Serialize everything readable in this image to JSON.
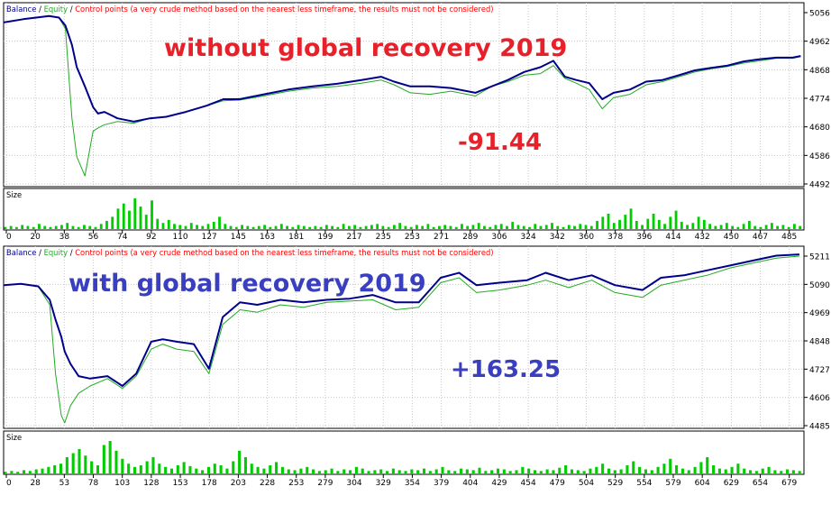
{
  "colors": {
    "balance": "#00008b",
    "equity": "#22aa22",
    "control": "#ff0000",
    "size_bars": "#00cc00",
    "grid": "#c8c8c8",
    "frame": "#000000",
    "text": "#000000",
    "annot_red": "#e8202a",
    "annot_blue": "#3a3fc0"
  },
  "panels": [
    {
      "legend": {
        "balance": "Balance",
        "sep1": "/",
        "equity": "Equity",
        "sep2": "/",
        "control": "Control points (a very crude method based on the nearest less timeframe, the results must not be considered)"
      },
      "y_ticks": [
        "5056",
        "4962",
        "4868",
        "4774",
        "4680",
        "4586",
        "4492"
      ],
      "size_label": "Size",
      "x_ticks": [
        "0",
        "20",
        "38",
        "56",
        "74",
        "92",
        "110",
        "127",
        "145",
        "163",
        "181",
        "199",
        "217",
        "235",
        "253",
        "271",
        "289",
        "306",
        "324",
        "342",
        "360",
        "378",
        "396",
        "414",
        "432",
        "450",
        "467",
        "485"
      ],
      "annotations": [
        {
          "text": "without global recovery 2019"
        },
        {
          "text": "-91.44"
        }
      ]
    },
    {
      "legend": {
        "balance": "Balance",
        "sep1": "/",
        "equity": "Equity",
        "sep2": "/",
        "control": "Control points (a very crude method based on the nearest less timeframe, the results must not be considered)"
      },
      "y_ticks": [
        "5211",
        "5090",
        "4969",
        "4848",
        "4727",
        "4606",
        "4485"
      ],
      "size_label": "Size",
      "x_ticks": [
        "0",
        "28",
        "53",
        "78",
        "103",
        "128",
        "153",
        "178",
        "203",
        "228",
        "253",
        "279",
        "304",
        "329",
        "354",
        "379",
        "404",
        "429",
        "454",
        "479",
        "504",
        "529",
        "554",
        "579",
        "604",
        "629",
        "654",
        "679"
      ],
      "annotations": [
        {
          "text": "with global recovery 2019"
        },
        {
          "text": "+163.25"
        }
      ]
    }
  ],
  "chart_data": [
    {
      "type": "line",
      "ylim": [
        4492,
        5056
      ],
      "x": [
        0,
        12,
        28,
        34,
        38,
        42,
        45,
        50,
        55,
        58,
        62,
        70,
        80,
        90,
        100,
        112,
        125,
        135,
        145,
        160,
        175,
        190,
        205,
        220,
        232,
        240,
        250,
        262,
        275,
        290,
        300,
        310,
        320,
        330,
        338,
        345,
        352,
        360,
        368,
        375,
        385,
        395,
        405,
        415,
        425,
        435,
        445,
        455,
        465,
        475,
        485,
        490
      ],
      "series": [
        {
          "name": "Balance",
          "values": [
            5000,
            5010,
            5020,
            5015,
            4990,
            4930,
            4860,
            4800,
            4735,
            4715,
            4720,
            4700,
            4690,
            4700,
            4705,
            4720,
            4740,
            4760,
            4760,
            4775,
            4790,
            4800,
            4808,
            4820,
            4830,
            4815,
            4800,
            4800,
            4795,
            4780,
            4800,
            4820,
            4845,
            4860,
            4880,
            4830,
            4820,
            4810,
            4760,
            4780,
            4790,
            4815,
            4820,
            4835,
            4850,
            4858,
            4865,
            4878,
            4885,
            4890,
            4890,
            4895
          ]
        },
        {
          "name": "Equity",
          "values": [
            5000,
            5010,
            5020,
            5015,
            4980,
            4700,
            4580,
            4520,
            4660,
            4670,
            4680,
            4690,
            4685,
            4700,
            4705,
            4720,
            4740,
            4755,
            4757,
            4770,
            4785,
            4795,
            4800,
            4810,
            4820,
            4805,
            4780,
            4775,
            4785,
            4770,
            4800,
            4815,
            4835,
            4840,
            4865,
            4825,
            4810,
            4790,
            4730,
            4765,
            4775,
            4805,
            4815,
            4830,
            4845,
            4855,
            4862,
            4873,
            4880,
            4888,
            4888,
            4893
          ]
        }
      ],
      "size_values": [
        2,
        3,
        2,
        4,
        3,
        2,
        5,
        3,
        2,
        3,
        4,
        6,
        3,
        2,
        4,
        3,
        2,
        5,
        8,
        12,
        20,
        25,
        18,
        30,
        22,
        14,
        28,
        10,
        6,
        9,
        5,
        4,
        3,
        6,
        4,
        3,
        5,
        7,
        12,
        5,
        3,
        2,
        4,
        3,
        2,
        3,
        4,
        2,
        3,
        5,
        3,
        2,
        4,
        3,
        2,
        3,
        2,
        4,
        3,
        2,
        5,
        3,
        4,
        2,
        3,
        4,
        5,
        3,
        2,
        4,
        6,
        3,
        2,
        4,
        3,
        5,
        2,
        3,
        4,
        3,
        2,
        5,
        3,
        4,
        6,
        3,
        2,
        4,
        5,
        3,
        7,
        4,
        3,
        2,
        5,
        3,
        4,
        6,
        3,
        2,
        4,
        3,
        5,
        4,
        3,
        8,
        12,
        15,
        6,
        9,
        14,
        20,
        8,
        4,
        10,
        15,
        9,
        5,
        12,
        18,
        7,
        4,
        6,
        12,
        9,
        5,
        3,
        4,
        6,
        3,
        2,
        5,
        8,
        3,
        2,
        4,
        6,
        3,
        4,
        2,
        5,
        3
      ]
    },
    {
      "type": "line",
      "ylim": [
        4485,
        5211
      ],
      "x": [
        0,
        15,
        30,
        40,
        45,
        50,
        53,
        58,
        65,
        75,
        90,
        103,
        115,
        128,
        138,
        150,
        165,
        178,
        190,
        205,
        220,
        240,
        260,
        280,
        300,
        320,
        340,
        360,
        379,
        395,
        410,
        430,
        454,
        470,
        490,
        510,
        530,
        554,
        570,
        590,
        610,
        630,
        650,
        670,
        690
      ],
      "series": [
        {
          "name": "Balance",
          "values": [
            5060,
            5065,
            5055,
            5000,
            4920,
            4850,
            4790,
            4740,
            4690,
            4680,
            4690,
            4650,
            4700,
            4830,
            4840,
            4830,
            4820,
            4720,
            4930,
            4990,
            4980,
            5000,
            4990,
            5000,
            5005,
            5020,
            4990,
            4990,
            5090,
            5110,
            5060,
            5070,
            5080,
            5110,
            5080,
            5100,
            5060,
            5040,
            5090,
            5100,
            5120,
            5140,
            5160,
            5180,
            5185
          ]
        },
        {
          "name": "Equity",
          "values": [
            5060,
            5065,
            5055,
            4980,
            4700,
            4530,
            4500,
            4570,
            4620,
            4650,
            4680,
            4640,
            4690,
            4800,
            4820,
            4800,
            4790,
            4700,
            4900,
            4960,
            4950,
            4980,
            4970,
            4990,
            4995,
            5000,
            4960,
            4970,
            5070,
            5090,
            5030,
            5040,
            5060,
            5080,
            5050,
            5080,
            5030,
            5010,
            5060,
            5080,
            5100,
            5130,
            5150,
            5170,
            5178
          ]
        }
      ],
      "size_values": [
        2,
        3,
        2,
        4,
        3,
        5,
        6,
        8,
        10,
        12,
        20,
        25,
        30,
        22,
        15,
        10,
        35,
        40,
        28,
        18,
        12,
        8,
        10,
        15,
        20,
        12,
        8,
        6,
        10,
        14,
        9,
        6,
        4,
        8,
        12,
        10,
        6,
        15,
        28,
        20,
        12,
        8,
        6,
        10,
        14,
        8,
        5,
        4,
        6,
        8,
        5,
        3,
        4,
        6,
        3,
        5,
        4,
        8,
        6,
        3,
        4,
        5,
        3,
        6,
        4,
        3,
        5,
        4,
        6,
        3,
        5,
        8,
        4,
        3,
        6,
        5,
        4,
        7,
        3,
        4,
        6,
        5,
        3,
        4,
        8,
        6,
        4,
        3,
        5,
        4,
        7,
        10,
        5,
        4,
        3,
        6,
        8,
        12,
        6,
        4,
        5,
        10,
        15,
        8,
        5,
        4,
        8,
        12,
        18,
        10,
        6,
        4,
        8,
        14,
        20,
        10,
        6,
        5,
        8,
        12,
        6,
        4,
        3,
        6,
        8,
        4,
        3,
        5,
        4,
        3
      ]
    }
  ]
}
